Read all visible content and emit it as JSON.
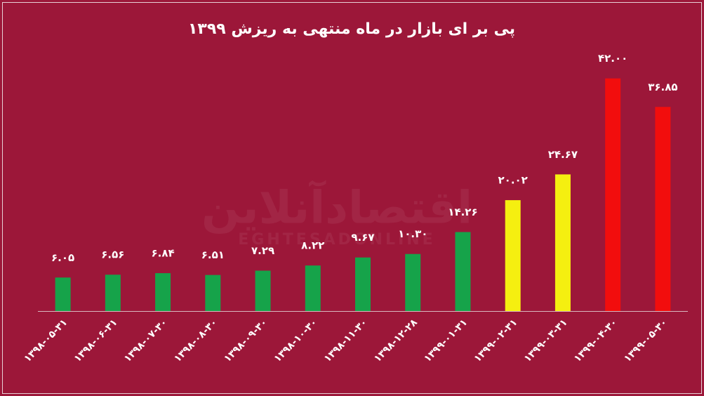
{
  "chart_data": {
    "type": "bar",
    "title": "پی بر ای بازار در ماه منتهی به ریزش ۱۳۹۹",
    "watermark": [
      "اقتصادآنلاین",
      "EGHTESADONLINE"
    ],
    "categories": [
      "۱۳۹۸-۰۵-۳۱",
      "۱۳۹۸-۰۶-۳۱",
      "۱۳۹۸-۰۷-۳۰",
      "۱۳۹۸-۰۸-۳۰",
      "۱۳۹۸-۰۹-۳۰",
      "۱۳۹۸-۱۰-۳۰",
      "۱۳۹۸-۱۱-۳۰",
      "۱۳۹۸-۱۲-۲۸",
      "۱۳۹۹-۰۱-۳۱",
      "۱۳۹۹-۰۲-۳۱",
      "۱۳۹۹-۰۳-۳۱",
      "۱۳۹۹-۰۴-۳۰",
      "۱۳۹۹-۰۵-۳۰"
    ],
    "values": [
      6.05,
      6.56,
      6.84,
      6.51,
      7.29,
      8.22,
      9.67,
      10.3,
      14.26,
      20.02,
      24.67,
      42.0,
      36.85
    ],
    "value_labels": [
      "۶.۰۵",
      "۶.۵۶",
      "۶.۸۴",
      "۶.۵۱",
      "۷.۲۹",
      "۸.۲۲",
      "۹.۶۷",
      "۱۰.۳۰",
      "۱۴.۲۶",
      "۲۰.۰۲",
      "۲۴.۶۷",
      "۴۲.۰۰",
      "۳۶.۸۵"
    ],
    "colors": [
      "#16a34a",
      "#16a34a",
      "#16a34a",
      "#16a34a",
      "#16a34a",
      "#16a34a",
      "#16a34a",
      "#16a34a",
      "#16a34a",
      "#f5ef10",
      "#f5ef10",
      "#f20d0d",
      "#f20d0d"
    ],
    "ylim": [
      0,
      45
    ]
  }
}
